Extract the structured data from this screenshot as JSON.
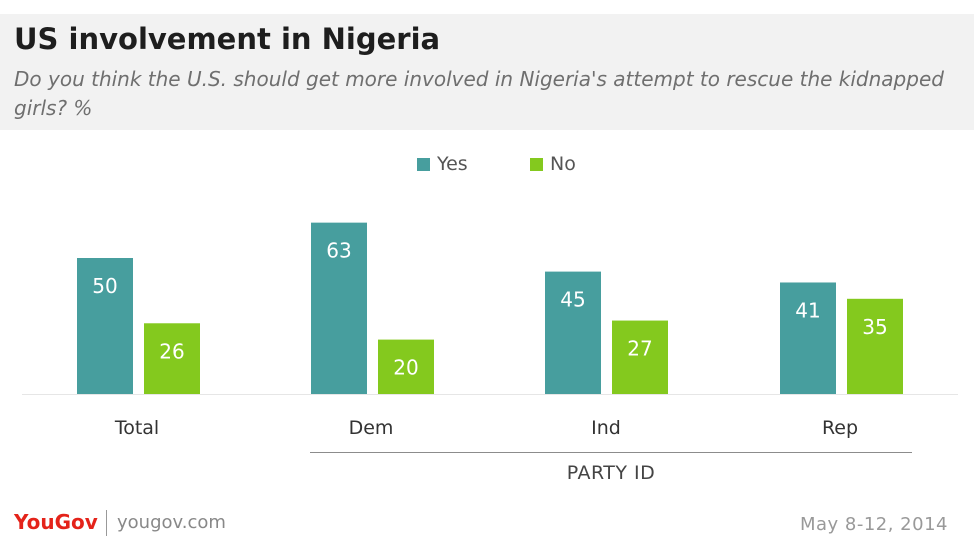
{
  "header": {
    "title": "US involvement in Nigeria",
    "subtitle": "Do you think the U.S. should get more involved in Nigeria's attempt to rescue the kidnapped girls? %"
  },
  "chart_data": {
    "type": "bar",
    "title": "US involvement in Nigeria",
    "categories": [
      "Total",
      "Dem",
      "Ind",
      "Rep"
    ],
    "series": [
      {
        "name": "Yes",
        "values": [
          50,
          63,
          45,
          41
        ],
        "color": "#479e9e"
      },
      {
        "name": "No",
        "values": [
          26,
          20,
          27,
          35
        ],
        "color": "#84c91e"
      }
    ],
    "ylim": [
      0,
      70
    ],
    "grid": false,
    "legend_position": "top-center",
    "category_group": {
      "label": "PARTY ID",
      "categories": [
        "Dem",
        "Ind",
        "Rep"
      ]
    }
  },
  "footer": {
    "logo_you": "You",
    "logo_gov": "Gov",
    "site": "yougov.com",
    "date": "May 8-12, 2014"
  }
}
